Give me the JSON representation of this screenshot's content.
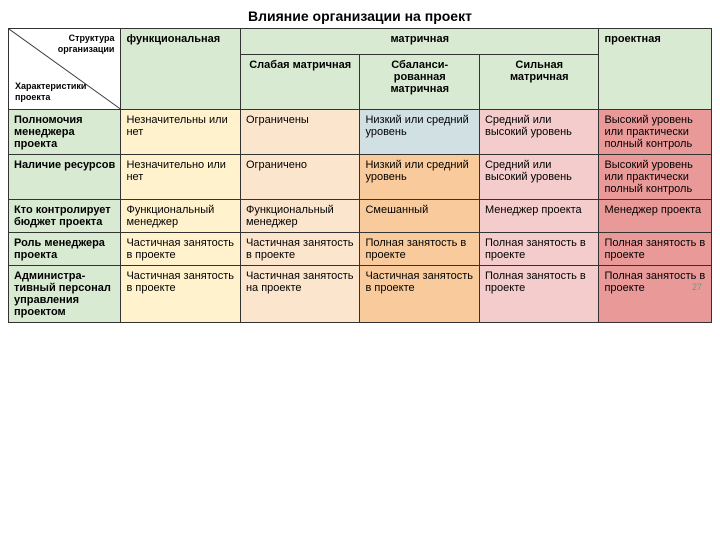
{
  "title": "Влияние организации на проект",
  "diag": {
    "top": "Структура организации",
    "bottom": "Характеристики проекта"
  },
  "header": {
    "functional": "функциональная",
    "matrix": "матричная",
    "project": "проектная",
    "weak": "Слабая матричная",
    "balanced": "Сбаланси-рованная матричная",
    "strong": "Сильная матричная"
  },
  "rows": [
    {
      "label": "Полномочия менеджера проекта",
      "c": [
        "Незначительны или нет",
        "Ограничены",
        "Низкий или средний уровень",
        "Средний или высокий уровень",
        "Высокий уровень или практически полный контроль"
      ]
    },
    {
      "label": "Наличие ресурсов",
      "c": [
        "Незначительно или нет",
        "Ограничено",
        "Низкий или средний уровень",
        "Средний или высокий уровень",
        "Высокий уровень или практически полный контроль"
      ]
    },
    {
      "label": "Кто контролирует бюджет проекта",
      "c": [
        "Функциональный менеджер",
        "Функциональный менеджер",
        "Смешанный",
        "Менеджер проекта",
        "Менеджер проекта"
      ]
    },
    {
      "label": "Роль менеджера проекта",
      "c": [
        "Частичная занятость в проекте",
        "Частичная занятость в проекте",
        "Полная занятость в проекте",
        "Полная занятость в проекте",
        "Полная занятость в проекте"
      ]
    },
    {
      "label": "Администра-тивный персонал управления проектом",
      "c": [
        "Частичная занятость в проекте",
        "Частичная занятость на проекте",
        "Частичная занятость в проекте",
        "Полная занятость в проекте",
        "Полная занятость в проекте"
      ]
    }
  ],
  "colors": {
    "header_green": "#d9ead3",
    "label_green": "#d9ead3",
    "c0": "#fff2cc",
    "c1": "#fce5cd",
    "c2_r0": "#d0e0e3",
    "c2": "#f9cb9c",
    "c3": "#f4cccc",
    "c4": "#ea9999"
  },
  "page_number": "27"
}
